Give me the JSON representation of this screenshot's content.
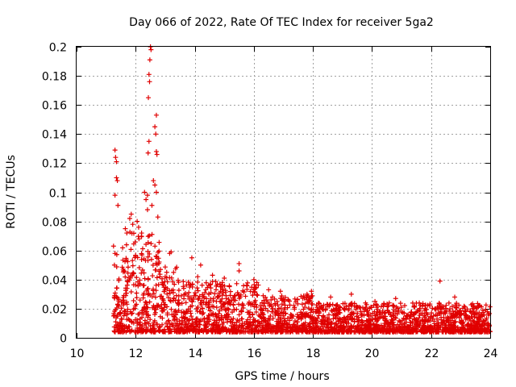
{
  "chart_data": {
    "type": "scatter",
    "title": "Day 066 of 2022, Rate Of TEC Index for receiver 5ga2",
    "xlabel": "GPS time / hours",
    "ylabel": "ROTI / TECUs",
    "xlim": [
      10,
      24
    ],
    "ylim": [
      0,
      0.2
    ],
    "xticks": [
      10,
      12,
      14,
      16,
      18,
      20,
      22,
      24
    ],
    "xtick_labels": [
      "10",
      "12",
      "14",
      "16",
      "18",
      "20",
      "22",
      "24"
    ],
    "yticks": [
      0,
      0.02,
      0.04,
      0.06,
      0.08,
      0.1,
      0.12,
      0.14,
      0.16,
      0.18,
      0.2
    ],
    "ytick_labels": [
      "0",
      "0.02",
      "0.04",
      "0.06",
      "0.08",
      "0.1",
      "0.12",
      "0.14",
      "0.16",
      "0.18",
      "0.2"
    ],
    "grid": true,
    "marker": "plus",
    "color": "#e00000",
    "series": [
      {
        "name": "ROTI",
        "points": [
          [
            11.3,
            0.129
          ],
          [
            11.32,
            0.124
          ],
          [
            11.35,
            0.121
          ],
          [
            11.35,
            0.11
          ],
          [
            11.38,
            0.108
          ],
          [
            11.3,
            0.098
          ],
          [
            11.4,
            0.091
          ],
          [
            11.25,
            0.063
          ],
          [
            11.3,
            0.058
          ],
          [
            11.28,
            0.05
          ],
          [
            11.8,
            0.082
          ],
          [
            11.85,
            0.085
          ],
          [
            11.9,
            0.078
          ],
          [
            11.65,
            0.075
          ],
          [
            11.7,
            0.072
          ],
          [
            12.05,
            0.08
          ],
          [
            12.1,
            0.076
          ],
          [
            12.2,
            0.072
          ],
          [
            12.3,
            0.1
          ],
          [
            12.35,
            0.095
          ],
          [
            12.4,
            0.098
          ],
          [
            12.5,
            0.2
          ],
          [
            12.52,
            0.198
          ],
          [
            12.48,
            0.191
          ],
          [
            12.45,
            0.181
          ],
          [
            12.47,
            0.176
          ],
          [
            12.43,
            0.165
          ],
          [
            12.45,
            0.135
          ],
          [
            12.42,
            0.127
          ],
          [
            12.7,
            0.153
          ],
          [
            12.65,
            0.145
          ],
          [
            12.68,
            0.14
          ],
          [
            12.7,
            0.128
          ],
          [
            12.72,
            0.126
          ],
          [
            12.6,
            0.108
          ],
          [
            12.65,
            0.105
          ],
          [
            12.7,
            0.1
          ],
          [
            12.55,
            0.091
          ],
          [
            12.75,
            0.083
          ],
          [
            12.4,
            0.088
          ],
          [
            13.2,
            0.059
          ],
          [
            13.15,
            0.058
          ],
          [
            13.05,
            0.045
          ],
          [
            13.0,
            0.042
          ],
          [
            13.9,
            0.055
          ],
          [
            14.2,
            0.05
          ],
          [
            14.1,
            0.042
          ],
          [
            14.6,
            0.043
          ],
          [
            15.0,
            0.041
          ],
          [
            15.5,
            0.051
          ],
          [
            15.5,
            0.046
          ],
          [
            16.0,
            0.04
          ],
          [
            16.1,
            0.038
          ],
          [
            16.5,
            0.033
          ],
          [
            16.9,
            0.032
          ],
          [
            17.8,
            0.03
          ],
          [
            17.95,
            0.032
          ],
          [
            18.6,
            0.028
          ],
          [
            19.3,
            0.03
          ],
          [
            20.1,
            0.025
          ],
          [
            20.8,
            0.027
          ],
          [
            21.6,
            0.024
          ],
          [
            22.3,
            0.039
          ],
          [
            22.8,
            0.028
          ],
          [
            23.4,
            0.02
          ],
          [
            23.9,
            0.018
          ]
        ]
      }
    ],
    "dense_region_note_excluded": true
  }
}
